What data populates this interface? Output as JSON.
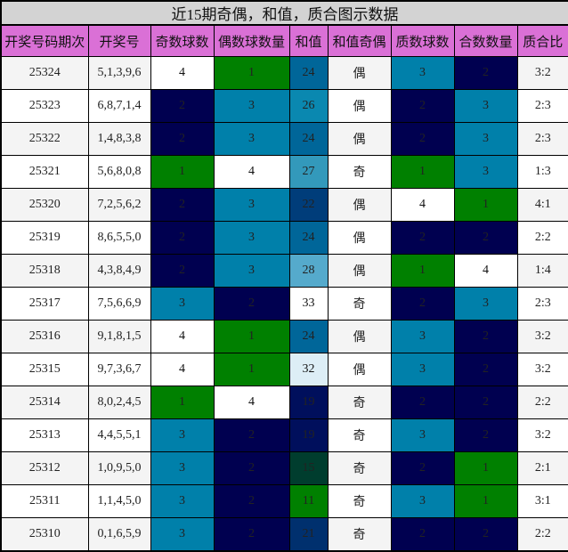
{
  "title": "近15期奇偶，和值，质合图示数据",
  "headers": [
    "开奖号码期次",
    "开奖号",
    "奇数球数",
    "偶数球数量",
    "和值",
    "和值奇偶",
    "质数球数",
    "合数数量",
    "质合比"
  ],
  "colors": {
    "header_bg": "#da70d6",
    "title_bg": "#d3d3d3",
    "count_1": "#008000",
    "count_2": "#000050",
    "count_3": "#0080aa",
    "count_4": "#ffffff"
  },
  "rows": [
    {
      "period": "25324",
      "numbers": "5,1,3,9,6",
      "odd": "4",
      "even": "1",
      "sum": "24",
      "sum_parity": "偶",
      "prime": "3",
      "composite": "2",
      "ratio": "3:2",
      "odd_bg": "#ffffff",
      "even_bg": "#008000",
      "sum_bg": "#006699",
      "prime_bg": "#0080aa",
      "composite_bg": "#000050"
    },
    {
      "period": "25323",
      "numbers": "6,8,7,1,4",
      "odd": "2",
      "even": "3",
      "sum": "26",
      "sum_parity": "偶",
      "prime": "2",
      "composite": "3",
      "ratio": "2:3",
      "odd_bg": "#000050",
      "even_bg": "#0080aa",
      "sum_bg": "#0a88b0",
      "prime_bg": "#000050",
      "composite_bg": "#0080aa"
    },
    {
      "period": "25322",
      "numbers": "1,4,8,3,8",
      "odd": "2",
      "even": "3",
      "sum": "24",
      "sum_parity": "偶",
      "prime": "2",
      "composite": "3",
      "ratio": "2:3",
      "odd_bg": "#000050",
      "even_bg": "#0080aa",
      "sum_bg": "#006699",
      "prime_bg": "#000050",
      "composite_bg": "#0080aa"
    },
    {
      "period": "25321",
      "numbers": "5,6,8,0,8",
      "odd": "1",
      "even": "4",
      "sum": "27",
      "sum_parity": "奇",
      "prime": "1",
      "composite": "3",
      "ratio": "1:3",
      "odd_bg": "#008000",
      "even_bg": "#ffffff",
      "sum_bg": "#3399bb",
      "prime_bg": "#008000",
      "composite_bg": "#0080aa"
    },
    {
      "period": "25320",
      "numbers": "7,2,5,6,2",
      "odd": "2",
      "even": "3",
      "sum": "22",
      "sum_parity": "偶",
      "prime": "4",
      "composite": "1",
      "ratio": "4:1",
      "odd_bg": "#000050",
      "even_bg": "#0080aa",
      "sum_bg": "#003d7a",
      "prime_bg": "#ffffff",
      "composite_bg": "#008000"
    },
    {
      "period": "25319",
      "numbers": "8,6,5,5,0",
      "odd": "2",
      "even": "3",
      "sum": "24",
      "sum_parity": "偶",
      "prime": "2",
      "composite": "2",
      "ratio": "2:2",
      "odd_bg": "#000050",
      "even_bg": "#0080aa",
      "sum_bg": "#006699",
      "prime_bg": "#000050",
      "composite_bg": "#000050"
    },
    {
      "period": "25318",
      "numbers": "4,3,8,4,9",
      "odd": "2",
      "even": "3",
      "sum": "28",
      "sum_parity": "偶",
      "prime": "1",
      "composite": "4",
      "ratio": "1:4",
      "odd_bg": "#000050",
      "even_bg": "#0080aa",
      "sum_bg": "#55aacc",
      "prime_bg": "#008000",
      "composite_bg": "#ffffff"
    },
    {
      "period": "25317",
      "numbers": "7,5,6,6,9",
      "odd": "3",
      "even": "2",
      "sum": "33",
      "sum_parity": "奇",
      "prime": "2",
      "composite": "3",
      "ratio": "2:3",
      "odd_bg": "#0080aa",
      "even_bg": "#000050",
      "sum_bg": "#ffffff",
      "prime_bg": "#000050",
      "composite_bg": "#0080aa"
    },
    {
      "period": "25316",
      "numbers": "9,1,8,1,5",
      "odd": "4",
      "even": "1",
      "sum": "24",
      "sum_parity": "偶",
      "prime": "3",
      "composite": "2",
      "ratio": "3:2",
      "odd_bg": "#ffffff",
      "even_bg": "#008000",
      "sum_bg": "#006699",
      "prime_bg": "#0080aa",
      "composite_bg": "#000050"
    },
    {
      "period": "25315",
      "numbers": "9,7,3,6,7",
      "odd": "4",
      "even": "1",
      "sum": "32",
      "sum_parity": "偶",
      "prime": "3",
      "composite": "2",
      "ratio": "3:2",
      "odd_bg": "#ffffff",
      "even_bg": "#008000",
      "sum_bg": "#ddeef6",
      "prime_bg": "#0080aa",
      "composite_bg": "#000050"
    },
    {
      "period": "25314",
      "numbers": "8,0,2,4,5",
      "odd": "1",
      "even": "4",
      "sum": "19",
      "sum_parity": "奇",
      "prime": "2",
      "composite": "2",
      "ratio": "2:2",
      "odd_bg": "#008000",
      "even_bg": "#ffffff",
      "sum_bg": "#000f5c",
      "prime_bg": "#000050",
      "composite_bg": "#000050"
    },
    {
      "period": "25313",
      "numbers": "4,4,5,5,1",
      "odd": "3",
      "even": "2",
      "sum": "19",
      "sum_parity": "奇",
      "prime": "3",
      "composite": "2",
      "ratio": "3:2",
      "odd_bg": "#0080aa",
      "even_bg": "#000050",
      "sum_bg": "#000f5c",
      "prime_bg": "#0080aa",
      "composite_bg": "#000050"
    },
    {
      "period": "25312",
      "numbers": "1,0,9,5,0",
      "odd": "3",
      "even": "2",
      "sum": "15",
      "sum_parity": "奇",
      "prime": "2",
      "composite": "1",
      "ratio": "2:1",
      "odd_bg": "#0080aa",
      "even_bg": "#000050",
      "sum_bg": "#003d2e",
      "prime_bg": "#000050",
      "composite_bg": "#008000"
    },
    {
      "period": "25311",
      "numbers": "1,1,4,5,0",
      "odd": "3",
      "even": "2",
      "sum": "11",
      "sum_parity": "奇",
      "prime": "3",
      "composite": "1",
      "ratio": "3:1",
      "odd_bg": "#0080aa",
      "even_bg": "#000050",
      "sum_bg": "#008000",
      "prime_bg": "#0080aa",
      "composite_bg": "#008000"
    },
    {
      "period": "25310",
      "numbers": "0,1,6,5,9",
      "odd": "3",
      "even": "2",
      "sum": "21",
      "sum_parity": "奇",
      "prime": "2",
      "composite": "2",
      "ratio": "2:2",
      "odd_bg": "#0080aa",
      "even_bg": "#000050",
      "sum_bg": "#00306e",
      "prime_bg": "#000050",
      "composite_bg": "#000050"
    }
  ]
}
